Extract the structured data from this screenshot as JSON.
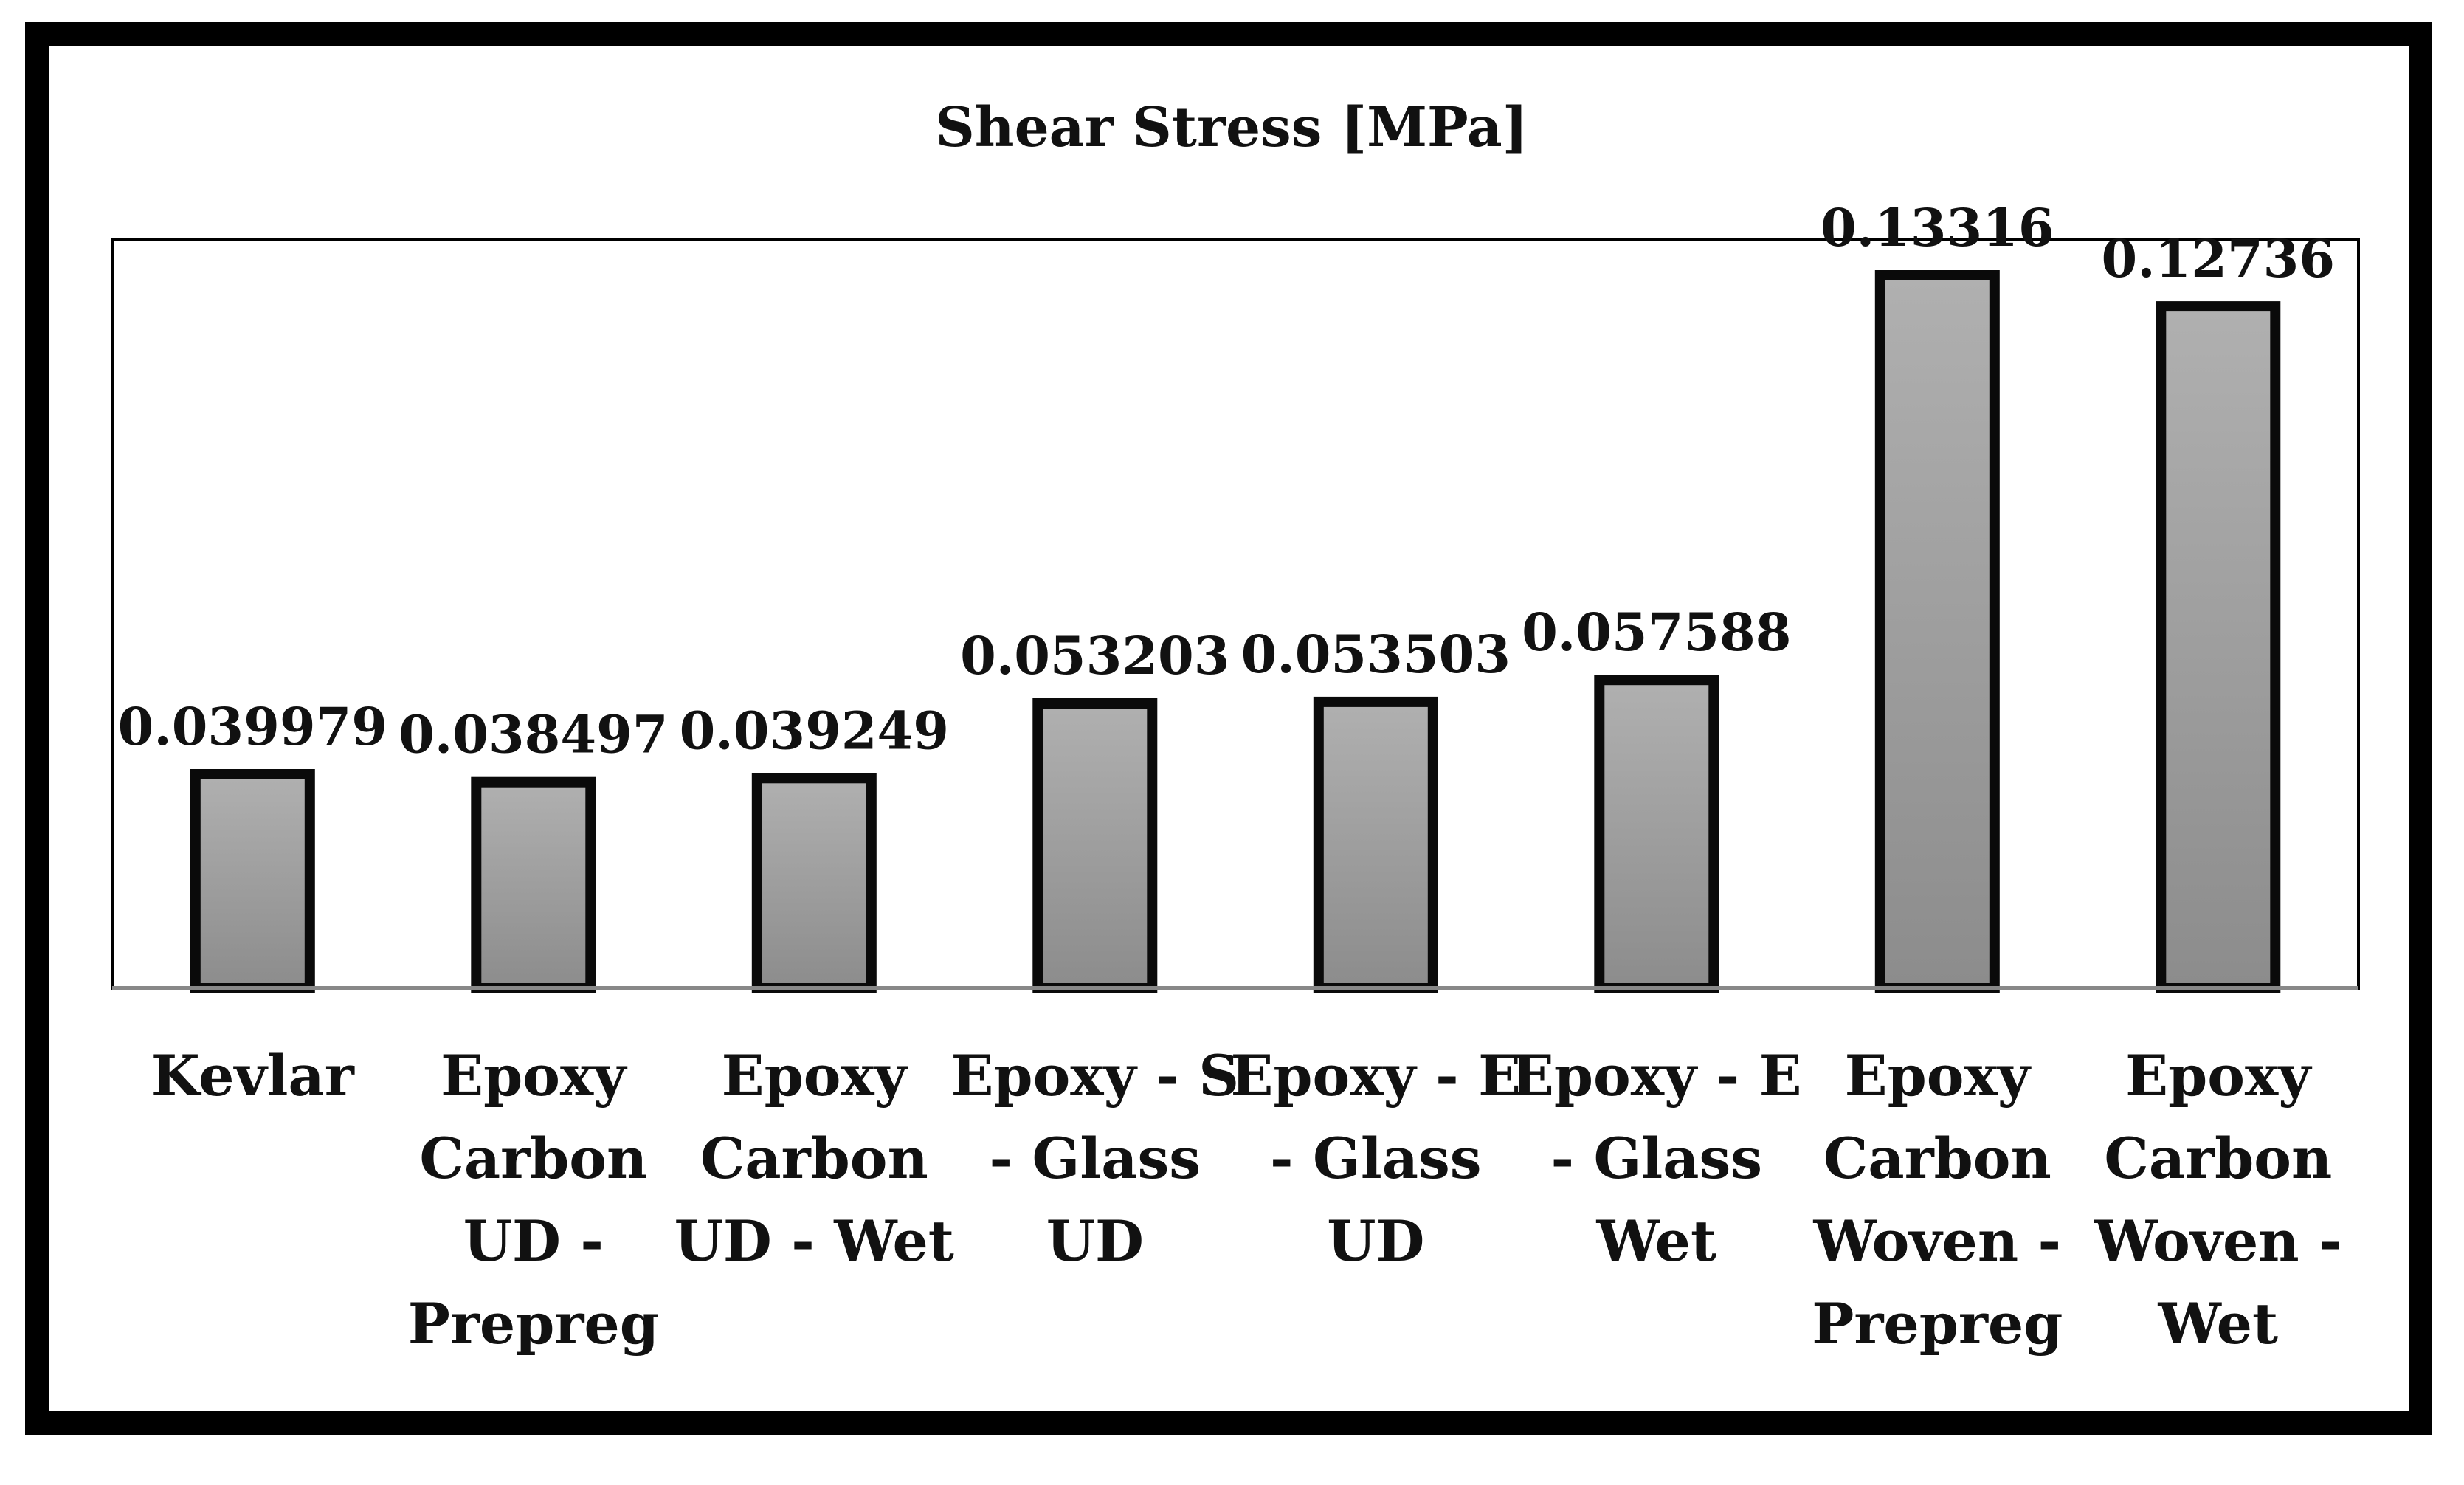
{
  "chart_data": {
    "type": "bar",
    "title": "Shear Stress [MPa]",
    "xlabel": "",
    "ylabel": "",
    "ylim": [
      0,
      0.14
    ],
    "grid": false,
    "categories": [
      "Kevlar",
      "Epoxy Carbon UD - Prepreg",
      "Epoxy Carbon UD - Wet",
      "Epoxy - S - Glass UD",
      "Epoxy - E - Glass UD",
      "Epoxy - E - Glass Wet",
      "Epoxy Carbon Woven - Prepreg",
      "Epoxy Carbon Woven - Wet"
    ],
    "category_label_lines": [
      [
        "Kevlar"
      ],
      [
        "Epoxy",
        "Carbon",
        "UD -",
        "Prepreg"
      ],
      [
        "Epoxy",
        "Carbon",
        "UD - Wet"
      ],
      [
        "Epoxy - S",
        "- Glass",
        "UD"
      ],
      [
        "Epoxy - E",
        "- Glass",
        "UD"
      ],
      [
        "Epoxy - E",
        "- Glass",
        "Wet"
      ],
      [
        "Epoxy",
        "Carbon",
        "Woven -",
        "Prepreg"
      ],
      [
        "Epoxy",
        "Carbon",
        "Woven -",
        "Wet"
      ]
    ],
    "values": [
      0.039979,
      0.038497,
      0.039249,
      0.053203,
      0.053503,
      0.057588,
      0.13316,
      0.12736
    ],
    "value_labels": [
      "0.039979",
      "0.038497",
      "0.039249",
      "0.053203",
      "0.053503",
      "0.057588",
      "0.13316",
      "0.12736"
    ],
    "colors": {
      "bar_fill_top": "#b0b0b0",
      "bar_fill_bottom": "#8c8c8c",
      "bar_stroke": "#0a0a0a",
      "frame": "#000000"
    }
  }
}
